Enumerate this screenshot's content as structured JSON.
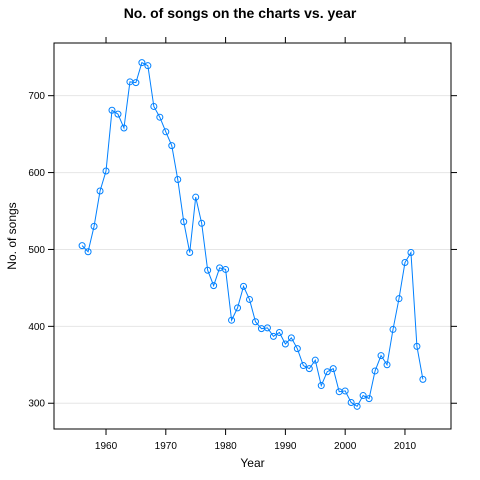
{
  "chart_data": {
    "type": "line",
    "title": "No. of songs on the charts vs. year",
    "xlabel": "Year",
    "ylabel": "No. of songs",
    "xlim": [
      1951.3,
      2017.7
    ],
    "ylim": [
      266.5,
      768.5
    ],
    "xticks": [
      1960,
      1970,
      1980,
      1990,
      2000,
      2010
    ],
    "yticks": [
      300,
      400,
      500,
      600,
      700
    ],
    "grid": true,
    "series_color": "#0080ff",
    "grid_color": "#e6e6e6",
    "x": [
      1956,
      1957,
      1958,
      1959,
      1960,
      1961,
      1962,
      1963,
      1964,
      1965,
      1966,
      1967,
      1968,
      1969,
      1970,
      1971,
      1972,
      1973,
      1974,
      1975,
      1976,
      1977,
      1978,
      1979,
      1980,
      1981,
      1982,
      1983,
      1984,
      1985,
      1986,
      1987,
      1988,
      1989,
      1990,
      1991,
      1992,
      1993,
      1994,
      1995,
      1996,
      1997,
      1998,
      1999,
      2000,
      2001,
      2002,
      2003,
      2004,
      2005,
      2006,
      2007,
      2008,
      2009,
      2010,
      2011,
      2012,
      2013
    ],
    "y": [
      505,
      497,
      530,
      576,
      602,
      681,
      676,
      658,
      718,
      717,
      743,
      739,
      686,
      672,
      653,
      635,
      591,
      536,
      496,
      568,
      534,
      473,
      453,
      476,
      474,
      408,
      424,
      452,
      435,
      406,
      397,
      398,
      387,
      392,
      377,
      385,
      371,
      349,
      345,
      356,
      323,
      341,
      345,
      315,
      316,
      301,
      296,
      310,
      306,
      342,
      362,
      350,
      396,
      436,
      483,
      496,
      374,
      331
    ]
  }
}
